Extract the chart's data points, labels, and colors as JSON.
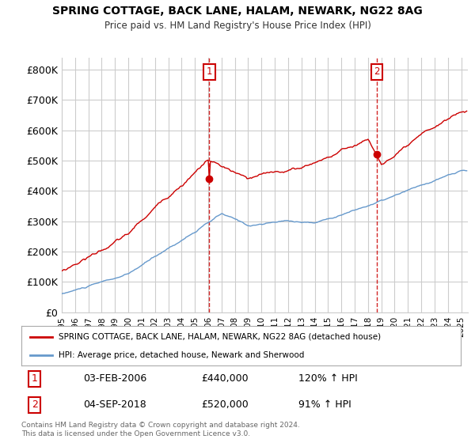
{
  "title1": "SPRING COTTAGE, BACK LANE, HALAM, NEWARK, NG22 8AG",
  "title2": "Price paid vs. HM Land Registry's House Price Index (HPI)",
  "ylabel_ticks": [
    "£0",
    "£100K",
    "£200K",
    "£300K",
    "£400K",
    "£500K",
    "£600K",
    "£700K",
    "£800K"
  ],
  "ytick_values": [
    0,
    100000,
    200000,
    300000,
    400000,
    500000,
    600000,
    700000,
    800000
  ],
  "ylim": [
    0,
    840000
  ],
  "xlim_start": 1995.0,
  "xlim_end": 2025.5,
  "sale1_x": 2006.085,
  "sale1_y": 440000,
  "sale1_label": "1",
  "sale2_x": 2018.671,
  "sale2_y": 520000,
  "sale2_label": "2",
  "legend_line1": "SPRING COTTAGE, BACK LANE, HALAM, NEWARK, NG22 8AG (detached house)",
  "legend_line2": "HPI: Average price, detached house, Newark and Sherwood",
  "table_row1": [
    "1",
    "03-FEB-2006",
    "£440,000",
    "120% ↑ HPI"
  ],
  "table_row2": [
    "2",
    "04-SEP-2018",
    "£520,000",
    "91% ↑ HPI"
  ],
  "footer": "Contains HM Land Registry data © Crown copyright and database right 2024.\nThis data is licensed under the Open Government Licence v3.0.",
  "line_color_red": "#cc0000",
  "line_color_blue": "#6699cc",
  "vline_color": "#cc0000",
  "background_color": "#ffffff",
  "grid_color": "#cccccc"
}
